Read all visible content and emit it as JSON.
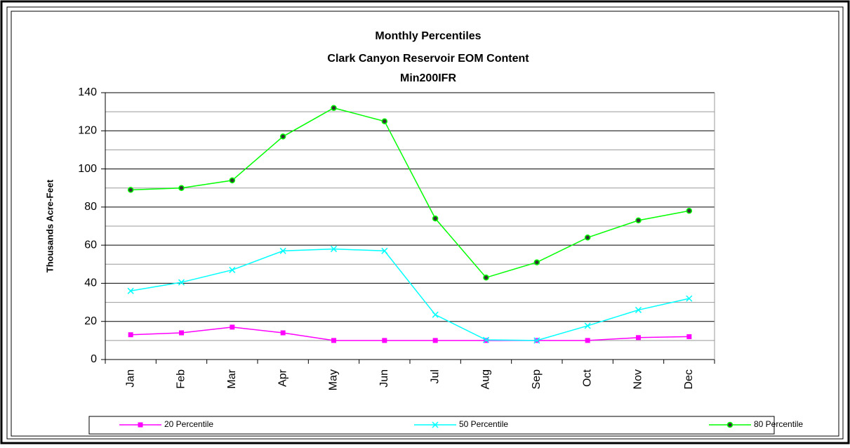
{
  "chart_data": {
    "type": "line",
    "title": [
      "Monthly Percentiles",
      "Clark Canyon Reservoir EOM Content",
      "Min200IFR"
    ],
    "ylabel": "Thousands Acre-Feet",
    "categories": [
      "Jan",
      "Feb",
      "Mar",
      "Apr",
      "May",
      "Jun",
      "Jul",
      "Aug",
      "Sep",
      "Oct",
      "Nov",
      "Dec"
    ],
    "series": [
      {
        "name": "20 Percentile",
        "color": "#ff00ff",
        "marker": "square",
        "values": [
          13,
          14,
          17,
          14,
          10,
          10,
          10,
          10,
          10,
          10,
          11.5,
          12
        ]
      },
      {
        "name": "50 Percentile",
        "color": "#00ffff",
        "marker": "x",
        "values": [
          36,
          40.5,
          47,
          57,
          58,
          57,
          23.5,
          10.3,
          10,
          17.7,
          26,
          32
        ]
      },
      {
        "name": "80 Percentile",
        "color": "#00ff00",
        "marker": "dot",
        "values": [
          89,
          90,
          94,
          117,
          132,
          125,
          74,
          43,
          51,
          64,
          73,
          78
        ]
      }
    ],
    "ylim": [
      0,
      140
    ],
    "yticks": [
      0,
      20,
      40,
      60,
      80,
      100,
      120,
      140
    ],
    "grid": true,
    "legend": "bottom"
  }
}
